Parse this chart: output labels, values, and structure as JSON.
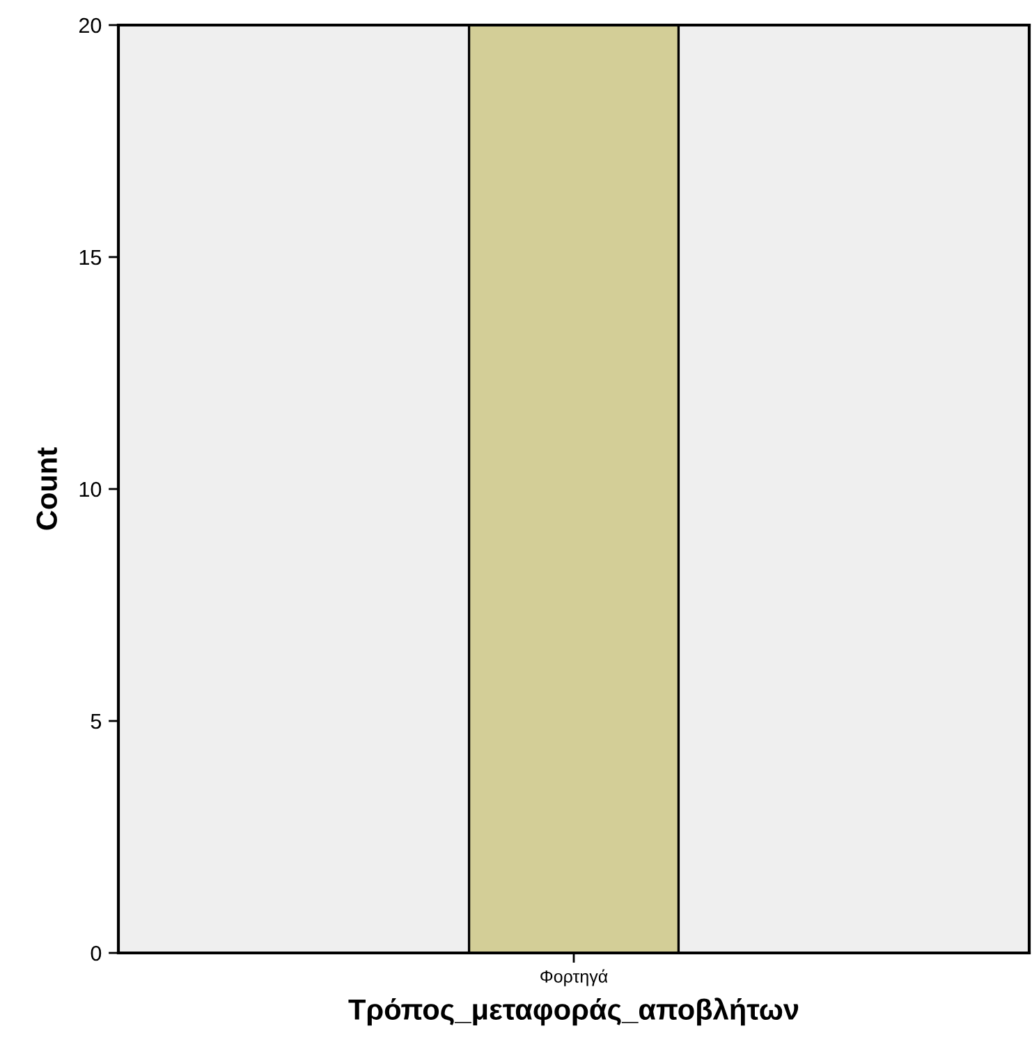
{
  "chart_data": {
    "type": "bar",
    "xlabel": "Τρόπος_μεταφοράς_αποβλήτων",
    "ylabel": "Count",
    "categories": [
      "Φορτηγά"
    ],
    "values": [
      20
    ],
    "color": "#d3ce97",
    "ylim": [
      0,
      20
    ],
    "yticks": [
      0,
      5,
      10,
      15,
      20
    ],
    "grid": false
  }
}
